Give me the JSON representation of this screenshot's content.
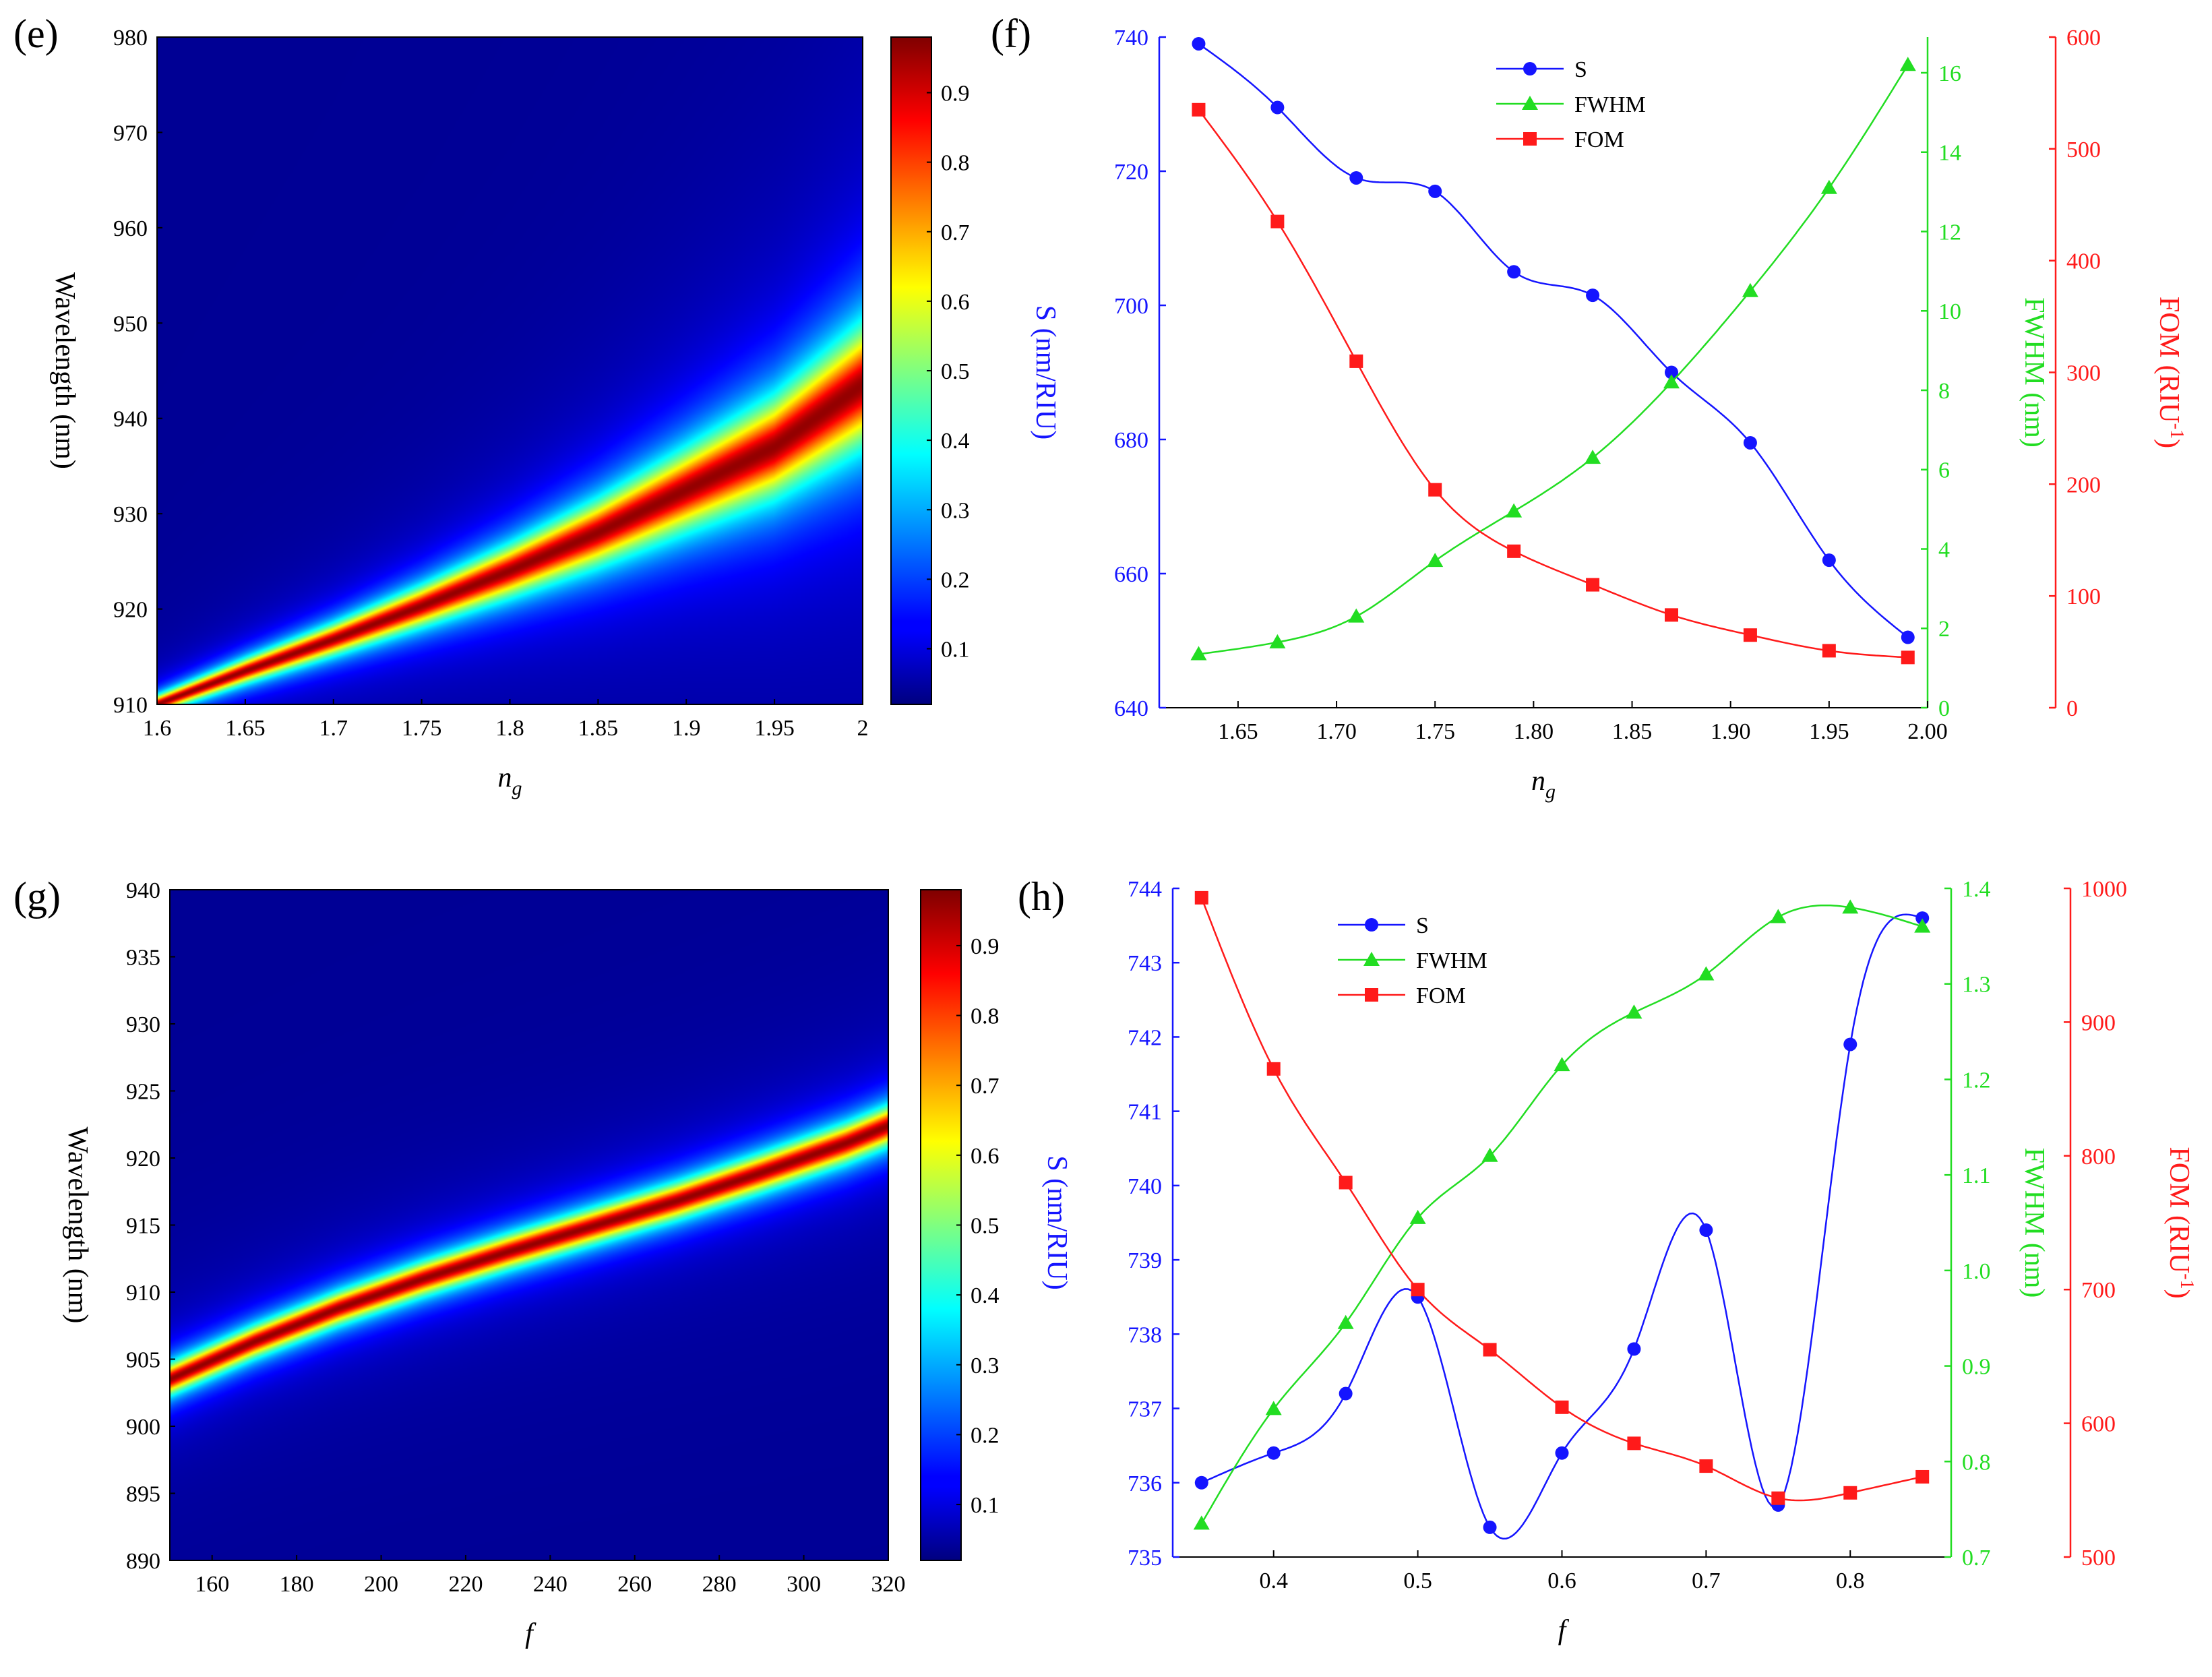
{
  "colors": {
    "blue": "#1515ff",
    "green": "#22dd22",
    "red": "#ff1a1a",
    "axis": "#000000"
  },
  "chart_data": [
    {
      "id": "e",
      "type": "heatmap",
      "panel_label": "(e)",
      "xlabel": "n",
      "xlabel_sub": "g",
      "ylabel": "Wavelength (nm)",
      "xlim": [
        1.6,
        2.0
      ],
      "ylim": [
        910,
        980
      ],
      "x_ticks": [
        "1.6",
        "1.65",
        "1.7",
        "1.75",
        "1.8",
        "1.85",
        "1.9",
        "1.95",
        "2"
      ],
      "x_tick_values": [
        1.6,
        1.65,
        1.7,
        1.75,
        1.8,
        1.85,
        1.9,
        1.95,
        2.0
      ],
      "y_ticks": [
        "910",
        "920",
        "930",
        "940",
        "950",
        "960",
        "970",
        "980"
      ],
      "y_tick_values": [
        910,
        920,
        930,
        940,
        950,
        960,
        970,
        980
      ],
      "ridge_x": [
        1.6,
        1.65,
        1.7,
        1.75,
        1.8,
        1.85,
        1.9,
        1.95,
        2.0
      ],
      "ridge_y": [
        910,
        913.5,
        916.8,
        920.3,
        924.0,
        928.0,
        932.5,
        937.0,
        943.5
      ],
      "ridge_width": [
        0.8,
        1.1,
        1.4,
        1.8,
        2.3,
        2.9,
        3.6,
        4.4,
        5.4
      ],
      "colorbar": {
        "min": 0.02,
        "max": 0.98,
        "ticks": [
          "0.1",
          "0.2",
          "0.3",
          "0.4",
          "0.5",
          "0.6",
          "0.7",
          "0.8",
          "0.9"
        ],
        "tick_values": [
          0.1,
          0.2,
          0.3,
          0.4,
          0.5,
          0.6,
          0.7,
          0.8,
          0.9
        ]
      }
    },
    {
      "id": "f",
      "type": "line",
      "panel_label": "(f)",
      "xlabel": "n",
      "xlabel_sub": "g",
      "xlim": [
        1.61,
        2.0
      ],
      "x_ticks": [
        "1.65",
        "1.70",
        "1.75",
        "1.80",
        "1.85",
        "1.90",
        "1.95",
        "2.00"
      ],
      "x_tick_values": [
        1.65,
        1.7,
        1.75,
        1.8,
        1.85,
        1.9,
        1.95,
        2.0
      ],
      "x": [
        1.63,
        1.67,
        1.71,
        1.75,
        1.79,
        1.83,
        1.87,
        1.91,
        1.95,
        1.99
      ],
      "axes": [
        {
          "label": "S (nm/RIU)",
          "color": "blue",
          "side": "left",
          "ylim": [
            640,
            740
          ],
          "ticks": [
            "640",
            "660",
            "680",
            "700",
            "720",
            "740"
          ],
          "tick_values": [
            640,
            660,
            680,
            700,
            720,
            740
          ]
        },
        {
          "label": "FWHM (nm)",
          "color": "green",
          "side": "right",
          "ylim": [
            0,
            16.9
          ],
          "ticks": [
            "0",
            "2",
            "4",
            "6",
            "8",
            "10",
            "12",
            "14",
            "16"
          ],
          "tick_values": [
            0,
            2,
            4,
            6,
            8,
            10,
            12,
            14,
            16
          ]
        },
        {
          "label": "FOM (RIU",
          "label_sup": "-1",
          "label_end": ")",
          "color": "red",
          "side": "far-right",
          "ylim": [
            0,
            600
          ],
          "ticks": [
            "0",
            "100",
            "200",
            "300",
            "400",
            "500",
            "600"
          ],
          "tick_values": [
            0,
            100,
            200,
            300,
            400,
            500,
            600
          ]
        }
      ],
      "series": [
        {
          "name": "S",
          "color": "blue",
          "marker": "circle",
          "axis": 0,
          "values": [
            739,
            729.5,
            719,
            717,
            705,
            701.5,
            690,
            679.5,
            662,
            650.5
          ]
        },
        {
          "name": "FWHM",
          "color": "green",
          "marker": "triangle",
          "axis": 1,
          "values": [
            1.35,
            1.65,
            2.3,
            3.7,
            4.95,
            6.3,
            8.2,
            10.5,
            13.1,
            16.2
          ]
        },
        {
          "name": "FOM",
          "color": "red",
          "marker": "square",
          "axis": 2,
          "values": [
            535,
            435,
            310,
            195,
            140,
            110,
            83,
            65,
            51,
            45
          ]
        }
      ],
      "legend_position": "top-center"
    },
    {
      "id": "g",
      "type": "heatmap",
      "panel_label": "(g)",
      "xlabel": "f",
      "ylabel": "Wavelength (nm)",
      "xlim": [
        150,
        320
      ],
      "ylim": [
        890,
        940
      ],
      "x_ticks": [
        "160",
        "180",
        "200",
        "220",
        "240",
        "260",
        "280",
        "300",
        "320"
      ],
      "x_tick_values": [
        160,
        180,
        200,
        220,
        240,
        260,
        280,
        300,
        320
      ],
      "y_ticks": [
        "890",
        "895",
        "900",
        "905",
        "910",
        "915",
        "920",
        "925",
        "930",
        "935",
        "940"
      ],
      "y_tick_values": [
        890,
        895,
        900,
        905,
        910,
        915,
        920,
        925,
        930,
        935,
        940
      ],
      "ridge_x": [
        150,
        170,
        190,
        210,
        230,
        250,
        270,
        290,
        310,
        320
      ],
      "ridge_y": [
        903.5,
        906.3,
        908.8,
        911.0,
        913.0,
        914.9,
        916.8,
        918.9,
        921.1,
        922.4
      ],
      "ridge_width": [
        1.0,
        1.02,
        1.05,
        1.08,
        1.1,
        1.13,
        1.16,
        1.2,
        1.24,
        1.26
      ],
      "colorbar": {
        "min": 0.02,
        "max": 0.98,
        "ticks": [
          "0.1",
          "0.2",
          "0.3",
          "0.4",
          "0.5",
          "0.6",
          "0.7",
          "0.8",
          "0.9"
        ],
        "tick_values": [
          0.1,
          0.2,
          0.3,
          0.4,
          0.5,
          0.6,
          0.7,
          0.8,
          0.9
        ]
      }
    },
    {
      "id": "h",
      "type": "line",
      "panel_label": "(h)",
      "xlabel": "f",
      "xlim": [
        0.33,
        0.87
      ],
      "x_ticks": [
        "0.4",
        "0.5",
        "0.6",
        "0.7",
        "0.8"
      ],
      "x_tick_values": [
        0.4,
        0.5,
        0.6,
        0.7,
        0.8
      ],
      "x": [
        0.35,
        0.4,
        0.45,
        0.5,
        0.55,
        0.6,
        0.65,
        0.7,
        0.75,
        0.8,
        0.85
      ],
      "axes": [
        {
          "label": "S (nm/RIU)",
          "color": "blue",
          "side": "left",
          "ylim": [
            735,
            744
          ],
          "ticks": [
            "735",
            "736",
            "737",
            "738",
            "739",
            "740",
            "741",
            "742",
            "743",
            "744"
          ],
          "tick_values": [
            735,
            736,
            737,
            738,
            739,
            740,
            741,
            742,
            743,
            744
          ]
        },
        {
          "label": "FWHM (nm)",
          "color": "green",
          "side": "right",
          "ylim": [
            0.7,
            1.4
          ],
          "ticks": [
            "0.7",
            "0.8",
            "0.9",
            "1.0",
            "1.1",
            "1.2",
            "1.3",
            "1.4"
          ],
          "tick_values": [
            0.7,
            0.8,
            0.9,
            1.0,
            1.1,
            1.2,
            1.3,
            1.4
          ]
        },
        {
          "label": "FOM (RIU",
          "label_sup": "-1",
          "label_end": ")",
          "color": "red",
          "side": "far-right",
          "ylim": [
            500,
            1000
          ],
          "ticks": [
            "500",
            "600",
            "700",
            "800",
            "900",
            "1000"
          ],
          "tick_values": [
            500,
            600,
            700,
            800,
            900,
            1000
          ]
        }
      ],
      "series": [
        {
          "name": "S",
          "color": "blue",
          "marker": "circle",
          "axis": 0,
          "values": [
            736.0,
            736.4,
            737.2,
            738.5,
            735.4,
            736.4,
            737.8,
            739.4,
            735.7,
            741.9,
            743.6
          ]
        },
        {
          "name": "FWHM",
          "color": "green",
          "marker": "triangle",
          "axis": 1,
          "values": [
            0.735,
            0.855,
            0.945,
            1.055,
            1.12,
            1.215,
            1.27,
            1.31,
            1.37,
            1.38,
            1.36
          ]
        },
        {
          "name": "FOM",
          "color": "red",
          "marker": "square",
          "axis": 2,
          "values": [
            993,
            865,
            780,
            700,
            655,
            612,
            585,
            568,
            544,
            548,
            560
          ]
        }
      ],
      "legend_position": "top-center"
    }
  ]
}
